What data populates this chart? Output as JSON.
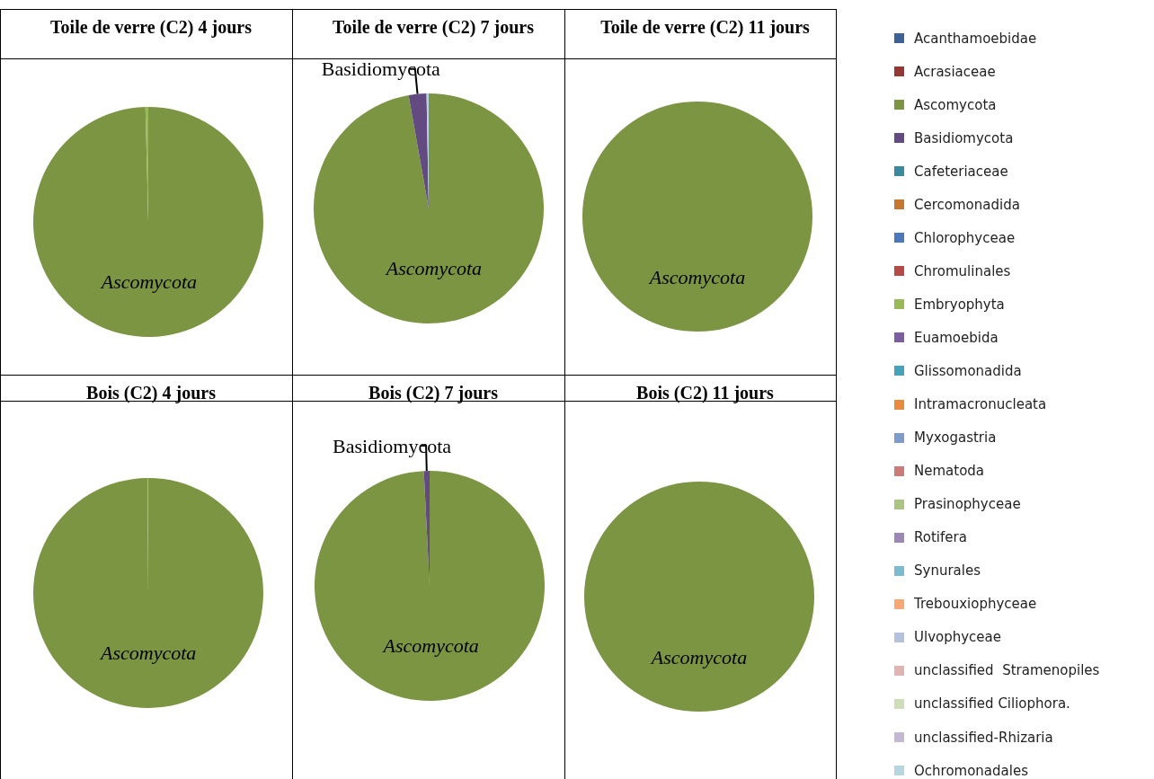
{
  "chart_data": [
    {
      "type": "pie",
      "title": "Toile de verre (C2) 4 jours",
      "legend": "right",
      "categories": [
        "Acanthamoebidae",
        "Acrasiaceae",
        "Ascomycota",
        "Basidiomycota",
        "Cafeteriaceae",
        "Cercomonadida",
        "Chlorophyceae",
        "Chromulinales",
        "Embryophyta",
        "Euamoebida",
        "Glissomonadida",
        "Intramacronucleata",
        "Myxogastria",
        "Nematoda",
        "Prasinophyceae",
        "Rotifera",
        "Synurales",
        "Trebouxiophyceae",
        "Ulvophyceae",
        "unclassified  Stramenopiles",
        "unclassified Ciliophora.",
        "unclassified-Rhizaria",
        "Ochromonadales"
      ],
      "values": [
        0,
        0,
        99.6,
        0,
        0,
        0,
        0,
        0,
        0.4,
        0,
        0,
        0,
        0,
        0,
        0,
        0,
        0,
        0,
        0,
        0,
        0,
        0,
        0
      ],
      "colors": [
        "#3e6296",
        "#953735",
        "#7b9543",
        "#634b82",
        "#3a8a9b",
        "#c7762f",
        "#4a78b8",
        "#b54a48",
        "#99b857",
        "#7a5e9f",
        "#46a2ba",
        "#e88b3f",
        "#7f9bc9",
        "#cb7b7a",
        "#aac484",
        "#9b88b5",
        "#7bbcce",
        "#f7a874",
        "#b4c2de",
        "#e0b4b3",
        "#cfdeb8",
        "#c4b9d4",
        "#b6d6df"
      ],
      "value_labels": [
        null,
        null,
        "Ascomycota",
        null,
        null,
        null,
        null,
        null,
        null,
        null,
        null,
        null,
        null,
        null,
        null,
        null,
        null,
        null,
        null,
        null,
        null,
        null,
        null
      ]
    },
    {
      "type": "pie",
      "title": "Toile de verre (C2) 7 jours",
      "categories": [
        "Ascomycota",
        "Basidiomycota",
        null
      ],
      "values": [
        97.2,
        2.5,
        0.3
      ],
      "colors": [
        "#7b9543",
        "#634b82",
        "#b6d6df"
      ]
    },
    {
      "type": "pie",
      "title": "Toile de verre (C2) 11 jours",
      "categories": [
        "Ascomycota"
      ],
      "values": [
        100
      ],
      "colors": [
        "#7b9543"
      ]
    },
    {
      "type": "pie",
      "title": "Bois (C2) 4 jours",
      "categories": [
        "Ascomycota",
        null
      ],
      "values": [
        99.9,
        0.1
      ],
      "colors": [
        "#7b9543",
        "#99b857"
      ]
    },
    {
      "type": "pie",
      "title": "Bois (C2) 7 jours",
      "categories": [
        "Ascomycota",
        "Basidiomycota"
      ],
      "values": [
        99.2,
        0.8
      ],
      "colors": [
        "#7b9543",
        "#634b82"
      ]
    },
    {
      "type": "pie",
      "title": "Bois (C2) 11 jours",
      "categories": [
        "Ascomycota"
      ],
      "values": [
        100
      ],
      "colors": [
        "#7b9543"
      ]
    }
  ]
}
